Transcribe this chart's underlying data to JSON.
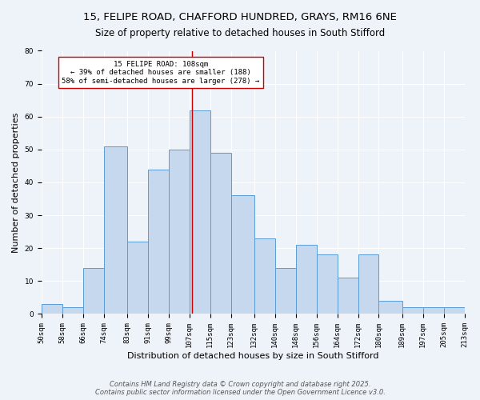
{
  "title1": "15, FELIPE ROAD, CHAFFORD HUNDRED, GRAYS, RM16 6NE",
  "title2": "Size of property relative to detached houses in South Stifford",
  "xlabel": "Distribution of detached houses by size in South Stifford",
  "ylabel": "Number of detached properties",
  "bins": [
    50,
    58,
    66,
    74,
    83,
    91,
    99,
    107,
    115,
    123,
    132,
    140,
    148,
    156,
    164,
    172,
    180,
    189,
    197,
    205,
    213
  ],
  "bin_labels": [
    "50sqm",
    "58sqm",
    "66sqm",
    "74sqm",
    "83sqm",
    "91sqm",
    "99sqm",
    "107sqm",
    "115sqm",
    "123sqm",
    "132sqm",
    "140sqm",
    "148sqm",
    "156sqm",
    "164sqm",
    "172sqm",
    "180sqm",
    "189sqm",
    "197sqm",
    "205sqm",
    "213sqm"
  ],
  "values": [
    3,
    2,
    14,
    51,
    22,
    44,
    50,
    62,
    49,
    36,
    23,
    14,
    21,
    18,
    11,
    18,
    4,
    2,
    2,
    2
  ],
  "bar_color": "#c5d8ed",
  "bar_edge_color": "#5b9bd5",
  "reference_line_x": 108,
  "reference_line_color": "#cc0000",
  "annotation_text": "15 FELIPE ROAD: 108sqm\n← 39% of detached houses are smaller (188)\n58% of semi-detached houses are larger (278) →",
  "annotation_box_color": "#ffffff",
  "annotation_box_edge_color": "#cc0000",
  "ylim": [
    0,
    80
  ],
  "yticks": [
    0,
    10,
    20,
    30,
    40,
    50,
    60,
    70,
    80
  ],
  "footer": "Contains HM Land Registry data © Crown copyright and database right 2025.\nContains public sector information licensed under the Open Government Licence v3.0.",
  "background_color": "#eef2f9",
  "grid_color": "#ffffff",
  "title_fontsize": 9.5,
  "subtitle_fontsize": 8.5,
  "axis_label_fontsize": 8,
  "tick_fontsize": 6.5,
  "footer_fontsize": 6
}
